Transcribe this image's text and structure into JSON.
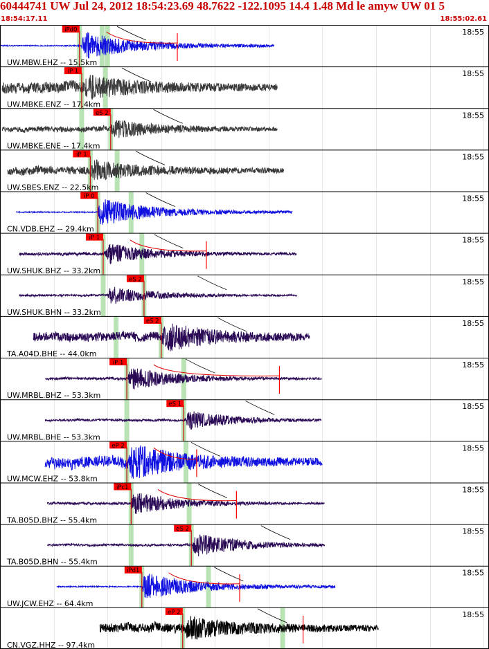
{
  "header": {
    "title": "60444741 UW Jul 24, 2012 18:54:23.69   48.7622 -122.1095 14.4 1.48 Md le amyw UW 01   5",
    "time_start": "18:54:17.11",
    "time_end": "18:55:02.61"
  },
  "colors": {
    "header_text": "#c80000",
    "pick_box": "#ff0000",
    "pick_band": "#b9e2b5",
    "grid": "#e8e8e8",
    "border": "#000000",
    "trace_blue": "#1010e0",
    "trace_gray": "#3a3a3a",
    "trace_purple": "#2a0a55",
    "trace_black": "#000000",
    "moveout_curve": "#000000",
    "coda_curve": "#e00000"
  },
  "chart_data": {
    "type": "seismogram",
    "time_range": [
      "18:54:17.11",
      "18:55:02.61"
    ],
    "minute_label": "18:55",
    "traces": [
      {
        "label": "UW.MBW.EHZ -- 15.5km",
        "color": "blue",
        "pick": {
          "label": "iPd0",
          "t": 7.4
        },
        "bands": [
          7.4,
          9.5,
          10.0
        ],
        "signal": [
          -1,
          25.5
        ],
        "event": 7.6,
        "amp": 0.85,
        "coda": true,
        "flat_pre": true,
        "spike": 16.5
      },
      {
        "label": "UW.MBKE.ENZ -- 17.4km",
        "color": "gray",
        "pick": {
          "label": "iP 1",
          "t": 7.6
        },
        "bands": [
          7.6,
          9.8
        ],
        "signal": [
          0.2,
          25.8
        ],
        "event": 7.8,
        "amp": 0.55,
        "noise": 0.55
      },
      {
        "label": "UW.MBKE.ENE -- 17.4km",
        "color": "gray",
        "pick": {
          "label": "eS 2",
          "t": 10.3
        },
        "bands": [
          7.6,
          10.3
        ],
        "signal": [
          0.2,
          25.8
        ],
        "event": 10.3,
        "amp": 0.5,
        "noise": 0.3
      },
      {
        "label": "UW.SBES.ENZ -- 22.5km",
        "color": "gray",
        "pick": {
          "label": "iP 1",
          "t": 8.4
        },
        "bands": [
          8.4,
          10.9
        ],
        "signal": [
          0.7,
          26.4
        ],
        "event": 8.4,
        "amp": 0.5,
        "noise": 0.45
      },
      {
        "label": "CN.VDB.EHZ -- 29.4km",
        "color": "blue",
        "pick": {
          "label": "iP 0",
          "t": 9.1
        },
        "bands": [
          9.1,
          12.2
        ],
        "signal": [
          1.5,
          27.2
        ],
        "event": 9.1,
        "amp": 0.85,
        "flat_pre": true
      },
      {
        "label": "UW.SHUK.BHZ -- 33.2km",
        "color": "purple",
        "pick": {
          "label": "iP 1",
          "t": 9.6
        },
        "bands": [
          9.6,
          13.2
        ],
        "signal": [
          1.8,
          27.6
        ],
        "event": 9.8,
        "amp": 0.6,
        "noise": 0.15,
        "coda": true,
        "spike": 19.2
      },
      {
        "label": "UW.SHUK.BHN -- 33.2km",
        "color": "purple",
        "pick": {
          "label": "eS 2",
          "t": 13.4
        },
        "bands": [
          9.6,
          13.4
        ],
        "signal": [
          1.8,
          27.6
        ],
        "event": 10.0,
        "amp": 0.55,
        "noise": 0.1
      },
      {
        "label": "TA.A04D.BHE -- 44.0km",
        "color": "purple",
        "pick": {
          "label": "eS 2",
          "t": 15.0
        },
        "bands": [
          10.8,
          15.0
        ],
        "signal": [
          3.1,
          28.8
        ],
        "event": 15.0,
        "amp": 0.75,
        "noise": 0.35
      },
      {
        "label": "UW.MRBL.BHZ -- 53.3km",
        "color": "purple",
        "pick": {
          "label": "iP 1",
          "t": 11.8
        },
        "bands": [
          11.8,
          17.1
        ],
        "signal": [
          4.2,
          29.9
        ],
        "event": 11.9,
        "amp": 0.7,
        "noise": 0.1,
        "coda": true,
        "spike": 26.0
      },
      {
        "label": "UW.MRBL.BHE -- 53.3km",
        "color": "purple",
        "pick": {
          "label": "eS 1",
          "t": 17.1
        },
        "bands": [
          11.8,
          17.1
        ],
        "signal": [
          4.2,
          29.9
        ],
        "event": 17.2,
        "amp": 0.6,
        "noise": 0.1
      },
      {
        "label": "UW.MCW.EHZ -- 53.8km",
        "color": "blue",
        "pick": {
          "label": "eP 2",
          "t": 11.8
        },
        "bands": [
          11.8,
          17.3
        ],
        "signal": [
          4.2,
          30.0
        ],
        "event": 12.0,
        "amp": 0.9,
        "noise": 0.35,
        "coda": true,
        "spike": 18.3
      },
      {
        "label": "TA.B05D.BHZ -- 55.4km",
        "color": "purple",
        "pick": {
          "label": "iPc1",
          "t": 12.2
        },
        "bands": [
          12.2,
          17.6
        ],
        "signal": [
          4.4,
          30.2
        ],
        "event": 12.2,
        "amp": 0.7,
        "noise": 0.1,
        "coda": true,
        "spike": 22.0
      },
      {
        "label": "TA.B05D.BHN -- 55.4km",
        "color": "purple",
        "pick": {
          "label": "eS 2",
          "t": 17.8
        },
        "bands": [
          12.2,
          17.8
        ],
        "signal": [
          4.4,
          30.2
        ],
        "event": 17.9,
        "amp": 0.75,
        "noise": 0.08
      },
      {
        "label": "UW.JCW.EHZ -- 64.4km",
        "color": "blue",
        "pick": {
          "label": "iPd1",
          "t": 13.2
        },
        "bands": [
          13.2,
          19.4
        ],
        "signal": [
          5.3,
          31.2
        ],
        "event": 13.2,
        "amp": 0.85,
        "coda": true,
        "flat_pre": true,
        "spike": 22.3
      },
      {
        "label": "CN.VGZ.HHZ -- 97.4km",
        "color": "black",
        "pick": {
          "label": "eP 2",
          "t": 17.0
        },
        "bands": [
          17.0,
          26.3
        ],
        "signal": [
          9.3,
          35.2
        ],
        "event": 17.2,
        "amp": 0.55,
        "noise": 0.5,
        "spike": 28.2
      }
    ]
  }
}
